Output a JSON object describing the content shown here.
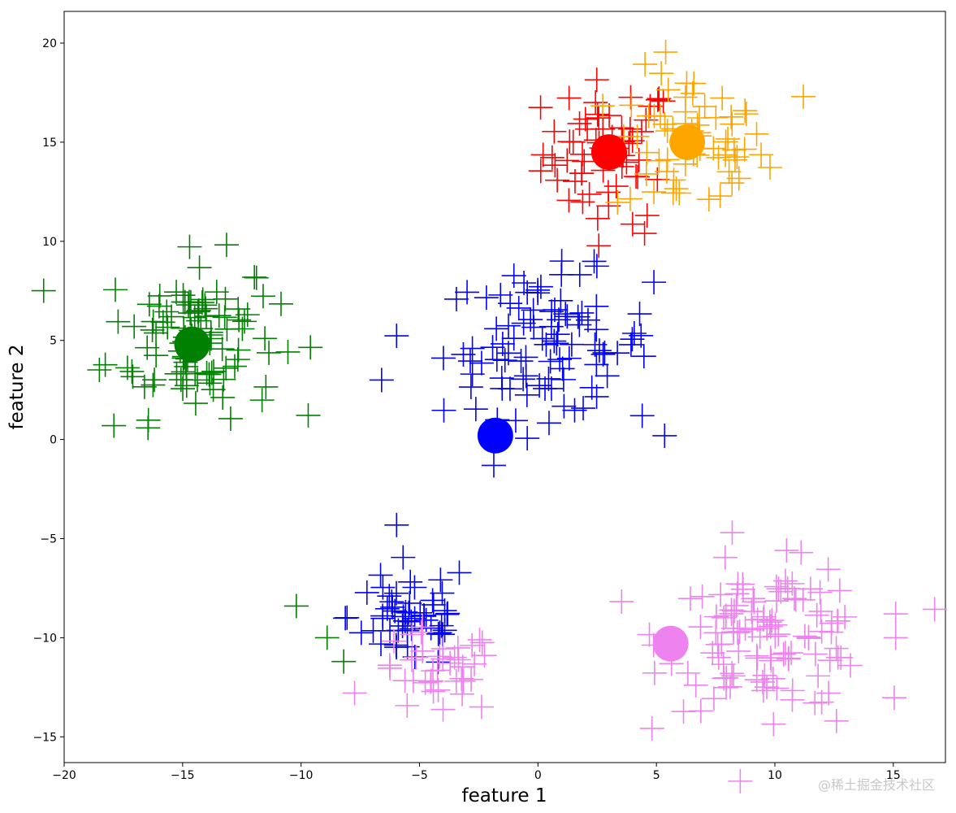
{
  "chart_data": {
    "type": "scatter",
    "title": "",
    "xlabel": "feature 1",
    "ylabel": "feature 2",
    "xlim": [
      -20,
      17.2
    ],
    "ylim": [
      -16.3,
      21.6
    ],
    "xticks": [
      -20,
      -15,
      -10,
      -5,
      0,
      5,
      10,
      15
    ],
    "yticks": [
      -15,
      -10,
      -5,
      0,
      5,
      10,
      15,
      20
    ],
    "grid": false,
    "marker": "+",
    "clusters": [
      {
        "color": "#ff0000",
        "center": [
          3,
          14.5
        ],
        "spread": [
          1.4,
          1.8
        ],
        "count": 60
      },
      {
        "color": "#ffa500",
        "center": [
          6.4,
          14.8
        ],
        "spread": [
          1.6,
          1.9
        ],
        "count": 65
      },
      {
        "color": "#008000",
        "center": [
          -14.6,
          5.2
        ],
        "spread": [
          1.8,
          2.0
        ],
        "count": 110
      },
      {
        "color": "#0000ff",
        "center": [
          0.4,
          4.8
        ],
        "spread": [
          2.2,
          1.8
        ],
        "count": 100
      },
      {
        "color": "#0000ff",
        "center": [
          -5.4,
          -8.9
        ],
        "spread": [
          1.3,
          1.4
        ],
        "count": 55
      },
      {
        "color": "#ee82ee",
        "center": [
          -4.3,
          -11.8
        ],
        "spread": [
          1.3,
          1.1
        ],
        "count": 40
      },
      {
        "color": "#ee82ee",
        "center": [
          9.8,
          -10.0
        ],
        "spread": [
          2.2,
          1.8
        ],
        "count": 120
      }
    ],
    "extra_points": [
      {
        "color": "#008000",
        "x": -10.2,
        "y": -8.4
      },
      {
        "color": "#008000",
        "x": -8.9,
        "y": -10.0
      },
      {
        "color": "#008000",
        "x": -8.2,
        "y": -11.2
      },
      {
        "color": "#008000",
        "x": -17.9,
        "y": 0.7
      },
      {
        "color": "#0000ff",
        "x": -6.6,
        "y": 3.0
      },
      {
        "color": "#0000ff",
        "x": 4.4,
        "y": 1.2
      },
      {
        "color": "#ee82ee",
        "x": 8.2,
        "y": -4.7
      },
      {
        "color": "#ee82ee",
        "x": 12.6,
        "y": -14.2
      },
      {
        "color": "#ee82ee",
        "x": 15.1,
        "y": -10.0
      },
      {
        "color": "#ffa500",
        "x": 11.2,
        "y": 17.3
      },
      {
        "color": "#ff0000",
        "x": 4.5,
        "y": 10.4
      }
    ],
    "centroids": [
      {
        "color": "#ff0000",
        "x": 3.0,
        "y": 14.5
      },
      {
        "color": "#ffa500",
        "x": 6.3,
        "y": 15.0
      },
      {
        "color": "#008000",
        "x": -14.6,
        "y": 4.8
      },
      {
        "color": "#0000ff",
        "x": -1.8,
        "y": 0.2
      },
      {
        "color": "#ee82ee",
        "x": 5.6,
        "y": -10.3
      }
    ]
  },
  "watermark": "@稀土掘金技术社区"
}
